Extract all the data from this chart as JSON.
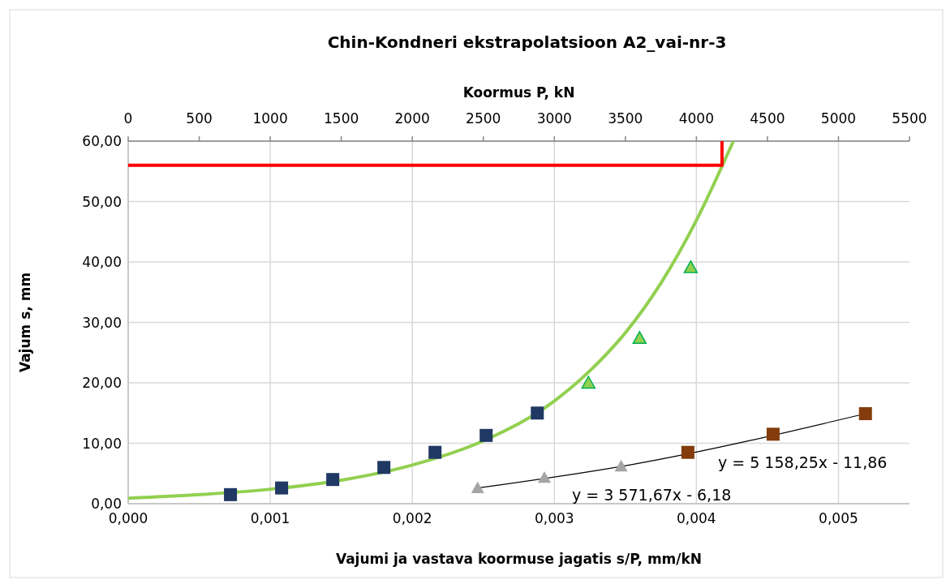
{
  "chart_data": {
    "type": "scatter",
    "title": "Chin-Kondneri ekstrapolatsioon A2_vai-nr-3",
    "xlabel": "Vajumi ja vastava koormuse jagatis s/P, mm/kN",
    "ylabel": "Vajum s, mm",
    "x2label": "Koormus P, kN",
    "xlim": [
      0,
      0.0055
    ],
    "xticks": [
      {
        "value": 0,
        "label": "0,000"
      },
      {
        "value": 0.001,
        "label": "0,001"
      },
      {
        "value": 0.002,
        "label": "0,002"
      },
      {
        "value": 0.003,
        "label": "0,003"
      },
      {
        "value": 0.004,
        "label": "0,004"
      },
      {
        "value": 0.005,
        "label": "0,005"
      }
    ],
    "x2lim": [
      0,
      5500
    ],
    "x2ticks": [
      0,
      500,
      1000,
      1500,
      2000,
      2500,
      3000,
      3500,
      4000,
      4500,
      5000,
      5500
    ],
    "ylim": [
      0,
      60
    ],
    "yticks": [
      {
        "value": 0,
        "label": "0,00"
      },
      {
        "value": 10,
        "label": "10,00"
      },
      {
        "value": 20,
        "label": "20,00"
      },
      {
        "value": 30,
        "label": "30,00"
      },
      {
        "value": 40,
        "label": "40,00"
      },
      {
        "value": 50,
        "label": "50,00"
      },
      {
        "value": 60,
        "label": "60,00"
      }
    ],
    "grid": true,
    "series": [
      {
        "type": "line",
        "color": "#92d050",
        "marker": "none",
        "line_style": "solid",
        "x": [
          0,
          0.0005,
          0.001,
          0.0015,
          0.002,
          0.0025,
          0.003,
          0.00325,
          0.0035,
          0.00375,
          0.004,
          0.00426
        ],
        "values": [
          0.9,
          1.5,
          2.4,
          3.9,
          6.4,
          10.4,
          17.0,
          22.0,
          28.3,
          36.5,
          46.9,
          60
        ]
      },
      {
        "type": "scatter",
        "color": "#1f3864",
        "marker": "square",
        "x": [
          0.00072,
          0.00108,
          0.00144,
          0.0018,
          0.00216,
          0.00252,
          0.00288
        ],
        "values": [
          1.5,
          2.6,
          4.0,
          6.0,
          8.5,
          11.3,
          15.0
        ]
      },
      {
        "type": "scatter",
        "color": "#92d050",
        "marker": "triangle",
        "x": [
          0.00324,
          0.0036,
          0.00396
        ],
        "values": [
          20.0,
          27.4,
          39.1
        ]
      },
      {
        "type": "scatter",
        "color": "#a5a5a5",
        "marker": "triangle",
        "x": [
          0.00246,
          0.00293,
          0.00347
        ],
        "values": [
          2.6,
          4.3,
          6.2
        ]
      },
      {
        "type": "scatter",
        "color": "#843c0c",
        "marker": "square",
        "x": [
          0.00394,
          0.00454,
          0.00519
        ],
        "values": [
          8.5,
          11.5,
          14.9
        ]
      },
      {
        "type": "line",
        "color": "#000000",
        "marker": "none",
        "line_style": "solid",
        "x": [
          0.00246,
          0.00355,
          0.00519
        ],
        "values": [
          2.6,
          6.5,
          14.9
        ]
      },
      {
        "type": "line",
        "color": "#ff0000",
        "marker": "none",
        "line_style": "solid",
        "x": [
          0,
          0.00418,
          0.00418
        ],
        "values": [
          56,
          56,
          60
        ]
      }
    ],
    "annotations": [
      "y = 5 158,25x - 11,86",
      "y = 3 571,67x - 6,18"
    ]
  }
}
